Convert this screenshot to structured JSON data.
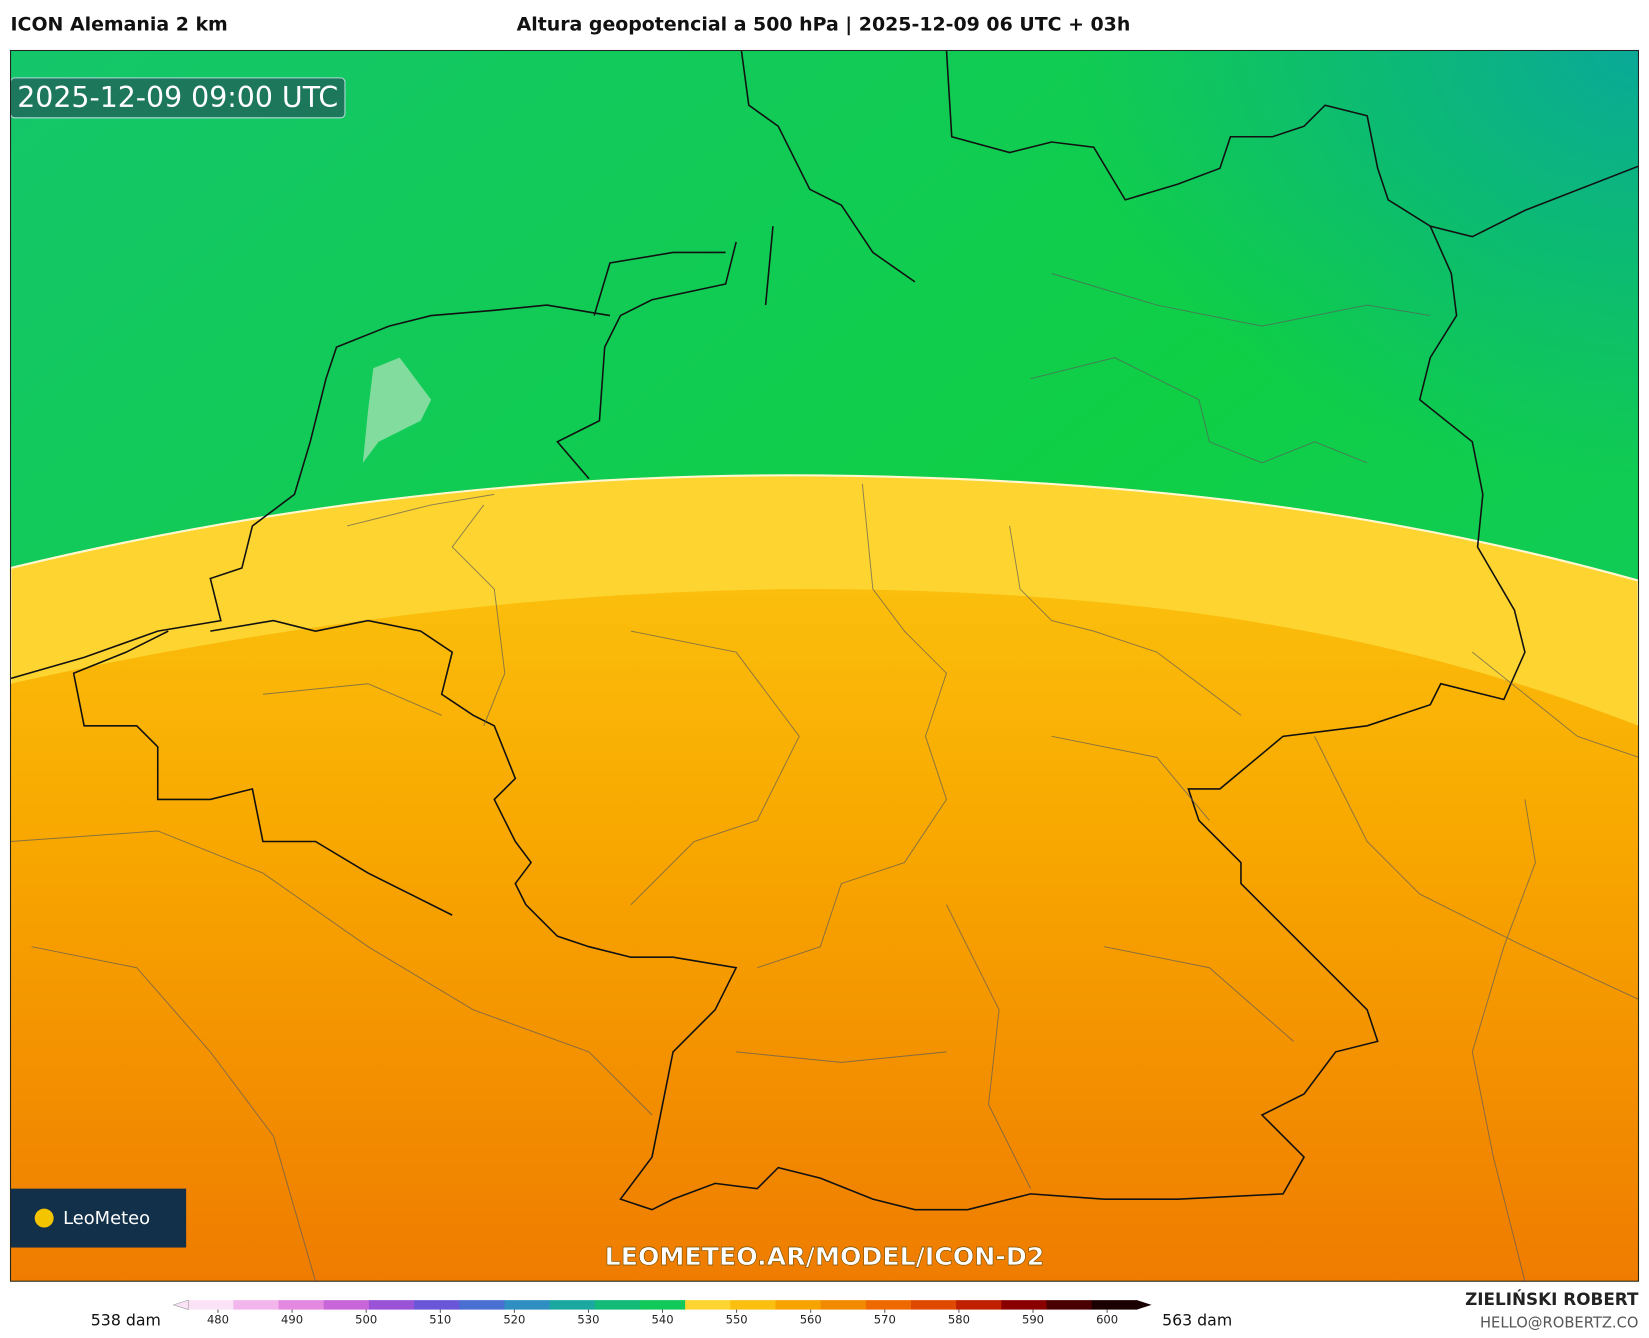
{
  "header": {
    "left": "ICON Alemania 2 km",
    "center": "Altura geopotencial a 500 hPa | 2025-12-09 06 UTC + 03h"
  },
  "map": {
    "timestamp": "2025-12-09 09:00 UTC",
    "logo": "LeoMeteo",
    "watermark": "LEOMETEO.AR/MODEL/ICON-D2"
  },
  "legend": {
    "min_label": "538 dam",
    "max_label": "563 dam",
    "range": [
      474,
      606
    ],
    "ticks": [
      480,
      490,
      500,
      510,
      520,
      530,
      540,
      550,
      560,
      570,
      580,
      590,
      600
    ],
    "colors": [
      "#fbe3f7",
      "#f2b6ec",
      "#e38ae0",
      "#c765d9",
      "#9a52d6",
      "#6a57d8",
      "#4a6fd3",
      "#2f8fc2",
      "#1aa8a0",
      "#12bb78",
      "#10c95a",
      "#fdd430",
      "#fbbf10",
      "#f7a400",
      "#f28a00",
      "#ee6a00",
      "#e04a00",
      "#c02000",
      "#8a0000",
      "#4a0000",
      "#1a0000"
    ]
  },
  "footer": {
    "author": "ZIELIŃSKI ROBERT",
    "email": "HELLO@ROBERTZ.CO"
  }
}
